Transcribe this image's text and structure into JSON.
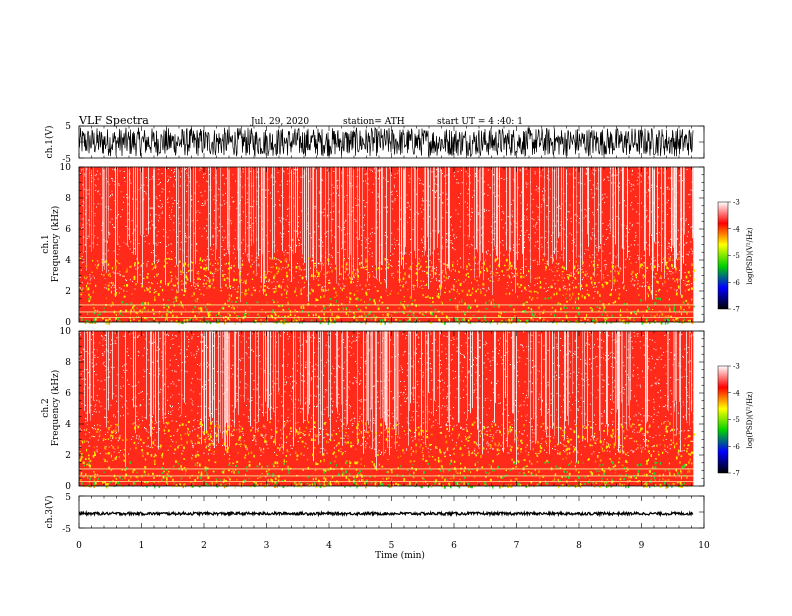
{
  "header": {
    "title": "VLF  Spectra",
    "date": "Jul.  29, 2020",
    "station": "station= ATH",
    "start": "start  UT  =   4  :40: 1"
  },
  "chart_data": [
    {
      "type": "line",
      "name": "channel-1-waveform",
      "ylabel": "ch.1(V)",
      "ylim": [
        -5,
        5
      ],
      "yticks": [
        "5",
        "-5"
      ],
      "xlim": [
        0,
        10
      ],
      "signal": {
        "data_end_min": 9.83,
        "approx_amplitude_range_V": [
          -4.5,
          4.5
        ]
      }
    },
    {
      "type": "heatmap",
      "name": "channel-1-spectrogram",
      "ylabel_top": "ch.1",
      "ylabel": "Frequency  (kHz)",
      "ylim": [
        0,
        10
      ],
      "yticks": [
        "0",
        "2",
        "4",
        "6",
        "8",
        "10"
      ],
      "xlim": [
        0,
        10
      ],
      "data_end_min": 9.83,
      "colorbar": {
        "label": "log(PSD)(V²/Hz)",
        "range": [
          -7,
          -3
        ],
        "ticks": [
          "-3",
          "-4",
          "-5",
          "-6",
          "-7"
        ],
        "colors": [
          "#000000",
          "#0000ff",
          "#00d000",
          "#ffff00",
          "#ff0000",
          "#ffffff"
        ]
      }
    },
    {
      "type": "heatmap",
      "name": "channel-2-spectrogram",
      "ylabel_top": "ch.2",
      "ylabel": "Frequency  (kHz)",
      "ylim": [
        0,
        10
      ],
      "yticks": [
        "0",
        "2",
        "4",
        "6",
        "8",
        "10"
      ],
      "xlim": [
        0,
        10
      ],
      "data_end_min": 9.83,
      "colorbar": {
        "label": "log(PSD)(V²/Hz)",
        "range": [
          -7,
          -3
        ],
        "ticks": [
          "-3",
          "-4",
          "-5",
          "-6",
          "-7"
        ],
        "colors": [
          "#000000",
          "#0000ff",
          "#00d000",
          "#ffff00",
          "#ff0000",
          "#ffffff"
        ]
      }
    },
    {
      "type": "line",
      "name": "channel-3-waveform",
      "ylabel": "ch.3(V)",
      "ylim": [
        -5,
        5
      ],
      "yticks": [
        "5",
        "-5"
      ],
      "xlim": [
        0,
        10
      ],
      "xlabel": "Time  (min)",
      "xticks": [
        "0",
        "1",
        "2",
        "3",
        "4",
        "5",
        "6",
        "7",
        "8",
        "9",
        "10"
      ],
      "signal": {
        "data_end_min": 9.83,
        "approx_level_V": -0.5
      }
    }
  ]
}
